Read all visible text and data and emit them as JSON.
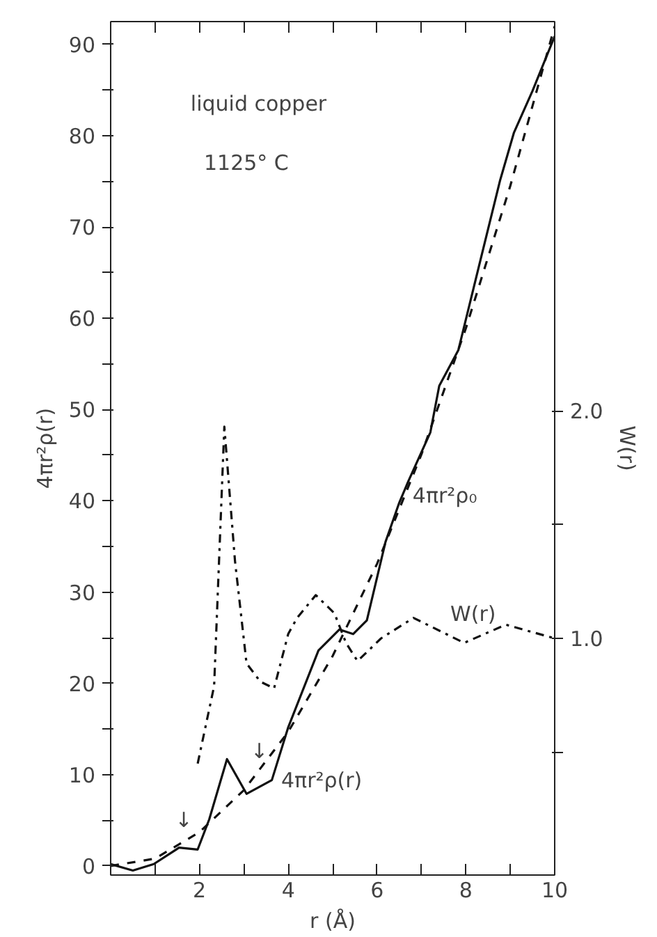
{
  "chart_data": {
    "type": "line",
    "xlabel": "r (Å)",
    "ylabel": "4πr²ρ(r)",
    "y2label": "W(r)",
    "xlim": [
      0,
      10
    ],
    "xticks": [
      {
        "value": 0,
        "label": null
      },
      {
        "value": 1,
        "label": null
      },
      2,
      {
        "value": 3,
        "label": null
      },
      4,
      {
        "value": 5,
        "label": null
      },
      6,
      {
        "value": 7,
        "label": null
      },
      8,
      {
        "value": 9,
        "label": null
      },
      10
    ],
    "ylim": [
      -1,
      92.5
    ],
    "yticks": [
      0,
      {
        "value": 5,
        "label": null
      },
      10,
      {
        "value": 15,
        "label": null
      },
      20,
      {
        "value": 25,
        "label": null
      },
      30,
      {
        "value": 35,
        "label": null
      },
      40,
      {
        "value": 45,
        "label": null
      },
      50,
      {
        "value": 55,
        "label": null
      },
      60,
      {
        "value": 65,
        "label": null
      },
      70,
      {
        "value": 75,
        "label": null
      },
      80,
      {
        "value": 85,
        "label": null
      },
      90
    ],
    "y2lim": [
      -0.04,
      3.71
    ],
    "y2ticks": [
      {
        "value": 0.5,
        "label": null
      },
      {
        "value": 1.0,
        "label": "1.0"
      },
      {
        "value": 1.5,
        "label": null
      },
      {
        "value": 2.0,
        "label": "2.0"
      }
    ],
    "grid": false,
    "marker": "none",
    "series": [
      {
        "color": "#111111",
        "line_style": "solid",
        "x": [
          0,
          0.5,
          0.97,
          1.54,
          1.96,
          2.22,
          2.62,
          3.06,
          3.63,
          4.0,
          4.68,
          5.15,
          5.46,
          5.77,
          6.19,
          6.5,
          6.7,
          7.2,
          7.4,
          7.83,
          8.35,
          8.77,
          9.08,
          9.5,
          10
        ],
        "values": [
          0.2,
          -0.5,
          0.2,
          2.0,
          1.8,
          5.1,
          11.7,
          7.9,
          9.4,
          15.2,
          23.6,
          25.9,
          25.4,
          26.9,
          35.5,
          39.8,
          42.1,
          47.5,
          52.6,
          56.5,
          66.8,
          75.1,
          80.3,
          84.9,
          90.9
        ]
      },
      {
        "color": "#111111",
        "line_style": "dashed",
        "x": [
          0,
          1,
          2,
          3,
          4,
          5,
          6,
          7,
          8,
          9,
          10
        ],
        "values": [
          0,
          0.8,
          3.7,
          8.3,
          14.7,
          23,
          33.1,
          45.1,
          58.9,
          74.5,
          92
        ]
      },
      {
        "color": "#111111",
        "line_style": "dashdot",
        "axis": "y2",
        "x": [
          1.96,
          2.33,
          2.56,
          2.8,
          3.06,
          3.37,
          3.68,
          4.0,
          4.2,
          4.62,
          5.04,
          5.3,
          5.56,
          6.09,
          6.82,
          7.96,
          8.9,
          10
        ],
        "values": [
          0.45,
          0.79,
          1.93,
          1.34,
          0.89,
          0.81,
          0.78,
          1.02,
          1.09,
          1.19,
          1.11,
          0.98,
          0.9,
          1.0,
          1.09,
          0.98,
          1.06,
          1.0
        ]
      }
    ],
    "annotations": [
      "liquid copper",
      "1125° C",
      "4πr²ρ₀",
      "W(r)",
      "4πr²ρ(r)",
      "↓",
      "↓"
    ]
  }
}
